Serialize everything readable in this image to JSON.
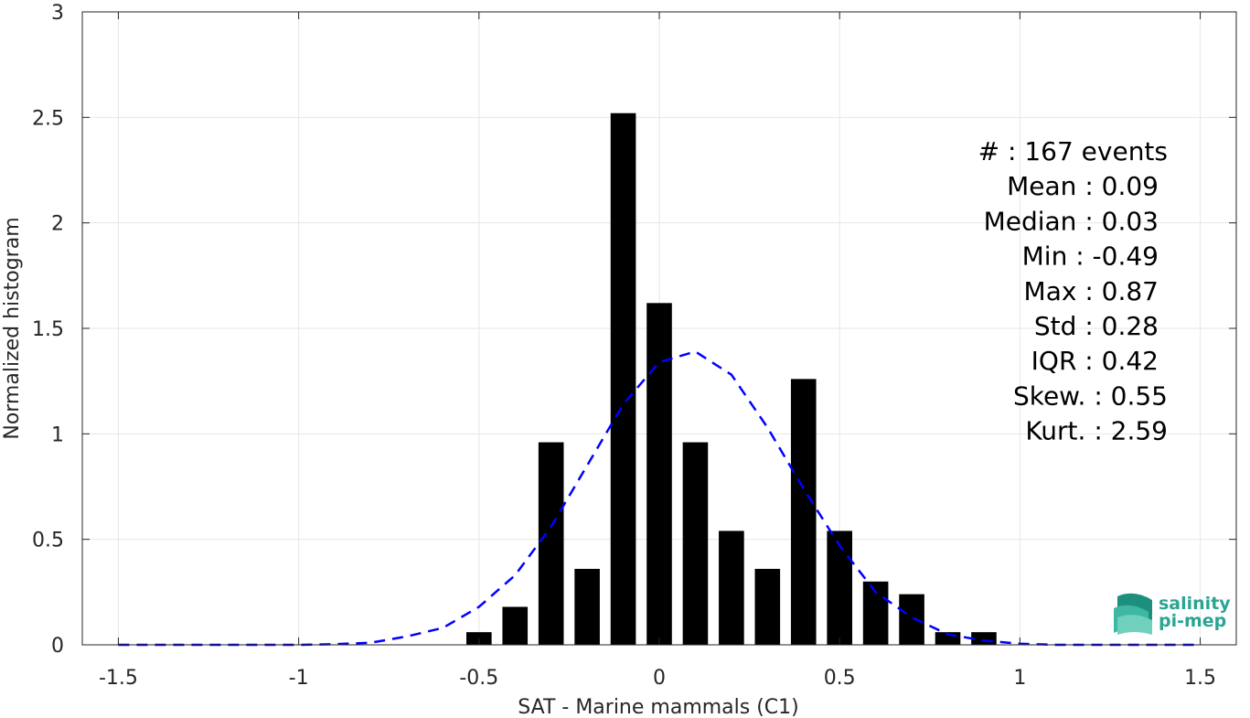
{
  "chart_data": {
    "type": "bar",
    "title": "",
    "xlabel": "SAT - Marine mammals (C1)",
    "ylabel": "Normalized histogram",
    "xlim": [
      -1.6,
      1.6
    ],
    "ylim": [
      0,
      3
    ],
    "x_ticks": [
      -1.5,
      -1,
      -0.5,
      0,
      0.5,
      1,
      1.5
    ],
    "x_tick_labels": [
      "-1.5",
      "-1",
      "-0.5",
      "0",
      "0.5",
      "1",
      "1.5"
    ],
    "y_ticks": [
      0,
      0.5,
      1,
      1.5,
      2,
      2.5,
      3
    ],
    "y_tick_labels": [
      "0",
      "0.5",
      "1",
      "1.5",
      "2",
      "2.5",
      "3"
    ],
    "grid": true,
    "bin_width": 0.1,
    "bar_width": 0.07,
    "bars": {
      "centers": [
        -0.5,
        -0.4,
        -0.3,
        -0.2,
        -0.1,
        0.0,
        0.1,
        0.2,
        0.3,
        0.4,
        0.5,
        0.6,
        0.7,
        0.8,
        0.9
      ],
      "values": [
        0.06,
        0.18,
        0.96,
        0.36,
        2.52,
        1.62,
        0.96,
        0.54,
        0.36,
        1.26,
        0.54,
        0.3,
        0.24,
        0.06,
        0.06
      ],
      "color": "#000000"
    },
    "fit_curve": {
      "style": "dashed",
      "color": "#0000ff",
      "x": [
        -1.5,
        -1.4,
        -1.3,
        -1.2,
        -1.1,
        -1.0,
        -0.9,
        -0.8,
        -0.7,
        -0.6,
        -0.5,
        -0.4,
        -0.3,
        -0.2,
        -0.1,
        0.0,
        0.1,
        0.2,
        0.3,
        0.4,
        0.5,
        0.6,
        0.7,
        0.8,
        0.9,
        1.0,
        1.1,
        1.2,
        1.3,
        1.4,
        1.5
      ],
      "y": [
        0.0,
        0.0,
        0.0,
        0.0,
        0.0,
        0.0,
        0.003,
        0.01,
        0.04,
        0.08,
        0.18,
        0.33,
        0.56,
        0.85,
        1.14,
        1.34,
        1.39,
        1.28,
        1.03,
        0.74,
        0.47,
        0.25,
        0.13,
        0.05,
        0.02,
        0.005,
        0.0,
        0.0,
        0.0,
        0.0,
        0.0
      ]
    }
  },
  "stats": [
    "#  : 167 events",
    "Mean : 0.09",
    "Median : 0.03",
    "Min : -0.49",
    "Max : 0.87",
    "Std : 0.28",
    "IQR : 0.42",
    "Skew. : 0.55",
    "Kurt. : 2.59"
  ],
  "logo": {
    "line1": "salinity",
    "line2": "pi-mep",
    "color": "#2aa592"
  }
}
